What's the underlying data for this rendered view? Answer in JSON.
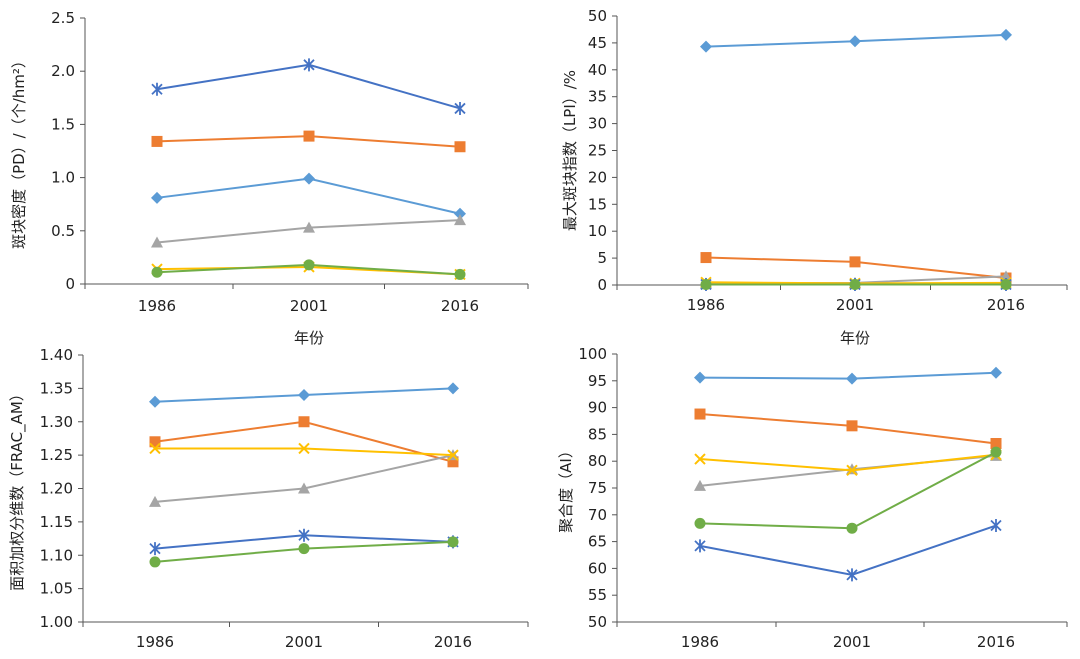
{
  "chart_data": [
    {
      "type": "line",
      "id": "pd",
      "title": "",
      "xlabel": "年份",
      "ylabel": "斑块密度（PD）/（个/hm²）",
      "categories": [
        "1986",
        "2001",
        "2016"
      ],
      "ylim": [
        0,
        2.5
      ],
      "ticks": [
        "0",
        "0.5",
        "1.0",
        "1.5",
        "2.0",
        "2.5"
      ],
      "series": [
        {
          "name": "series-1",
          "color": "#5b9bd5",
          "marker": "diamond",
          "values": [
            0.81,
            0.99,
            0.66
          ]
        },
        {
          "name": "series-2",
          "color": "#ed7d31",
          "marker": "square",
          "values": [
            1.34,
            1.39,
            1.29
          ]
        },
        {
          "name": "series-3",
          "color": "#a5a5a5",
          "marker": "triangle",
          "values": [
            0.39,
            0.53,
            0.6
          ]
        },
        {
          "name": "series-4",
          "color": "#ffc000",
          "marker": "x",
          "values": [
            0.14,
            0.16,
            0.09
          ]
        },
        {
          "name": "series-5",
          "color": "#4472c4",
          "marker": "asterisk",
          "values": [
            1.83,
            2.06,
            1.65
          ]
        },
        {
          "name": "series-6",
          "color": "#70ad47",
          "marker": "circle",
          "values": [
            0.11,
            0.18,
            0.09
          ]
        }
      ]
    },
    {
      "type": "line",
      "id": "lpi",
      "title": "",
      "xlabel": "年份",
      "ylabel": "最大斑块指数（LPI）/%",
      "categories": [
        "1986",
        "2001",
        "2016"
      ],
      "ylim": [
        0,
        50
      ],
      "ticks": [
        "0",
        "5",
        "10",
        "15",
        "20",
        "25",
        "30",
        "35",
        "40",
        "45",
        "50"
      ],
      "series": [
        {
          "name": "series-1",
          "color": "#5b9bd5",
          "marker": "diamond",
          "values": [
            44.3,
            45.3,
            46.5
          ]
        },
        {
          "name": "series-2",
          "color": "#ed7d31",
          "marker": "square",
          "values": [
            5.1,
            4.3,
            1.3
          ]
        },
        {
          "name": "series-3",
          "color": "#a5a5a5",
          "marker": "triangle",
          "values": [
            0.3,
            0.4,
            1.6
          ]
        },
        {
          "name": "series-4",
          "color": "#ffc000",
          "marker": "x",
          "values": [
            0.5,
            0.3,
            0.4
          ]
        },
        {
          "name": "series-5",
          "color": "#4472c4",
          "marker": "asterisk",
          "values": [
            0.1,
            0.1,
            0.1
          ]
        },
        {
          "name": "series-6",
          "color": "#70ad47",
          "marker": "circle",
          "values": [
            0.1,
            0.1,
            0.1
          ]
        }
      ]
    },
    {
      "type": "line",
      "id": "frac",
      "title": "",
      "xlabel": "",
      "ylabel": "面积加权分维数（FRAC_AM）",
      "categories": [
        "1986",
        "2001",
        "2016"
      ],
      "ylim": [
        1.0,
        1.4
      ],
      "ticks": [
        "1.00",
        "1.05",
        "1.10",
        "1.15",
        "1.20",
        "1.25",
        "1.30",
        "1.35",
        "1.40"
      ],
      "series": [
        {
          "name": "series-1",
          "color": "#5b9bd5",
          "marker": "diamond",
          "values": [
            1.33,
            1.34,
            1.35
          ]
        },
        {
          "name": "series-2",
          "color": "#ed7d31",
          "marker": "square",
          "values": [
            1.27,
            1.3,
            1.24
          ]
        },
        {
          "name": "series-3",
          "color": "#a5a5a5",
          "marker": "triangle",
          "values": [
            1.18,
            1.2,
            1.25
          ]
        },
        {
          "name": "series-4",
          "color": "#ffc000",
          "marker": "x",
          "values": [
            1.26,
            1.26,
            1.25
          ]
        },
        {
          "name": "series-5",
          "color": "#4472c4",
          "marker": "asterisk",
          "values": [
            1.11,
            1.13,
            1.12
          ]
        },
        {
          "name": "series-6",
          "color": "#70ad47",
          "marker": "circle",
          "values": [
            1.09,
            1.11,
            1.12
          ]
        }
      ]
    },
    {
      "type": "line",
      "id": "ai",
      "title": "",
      "xlabel": "",
      "ylabel": "聚合度（AI）",
      "categories": [
        "1986",
        "2001",
        "2016"
      ],
      "ylim": [
        50,
        100
      ],
      "ticks": [
        "50",
        "55",
        "60",
        "65",
        "70",
        "75",
        "80",
        "85",
        "90",
        "95",
        "100"
      ],
      "series": [
        {
          "name": "series-1",
          "color": "#5b9bd5",
          "marker": "diamond",
          "values": [
            95.6,
            95.4,
            96.5
          ]
        },
        {
          "name": "series-2",
          "color": "#ed7d31",
          "marker": "square",
          "values": [
            88.8,
            86.6,
            83.3
          ]
        },
        {
          "name": "series-3",
          "color": "#a5a5a5",
          "marker": "triangle",
          "values": [
            75.4,
            78.5,
            81.0
          ]
        },
        {
          "name": "series-4",
          "color": "#ffc000",
          "marker": "x",
          "values": [
            80.4,
            78.3,
            81.2
          ]
        },
        {
          "name": "series-5",
          "color": "#4472c4",
          "marker": "asterisk",
          "values": [
            64.2,
            58.8,
            68.0
          ]
        },
        {
          "name": "series-6",
          "color": "#70ad47",
          "marker": "circle",
          "values": [
            68.4,
            67.5,
            81.7
          ]
        }
      ]
    }
  ]
}
